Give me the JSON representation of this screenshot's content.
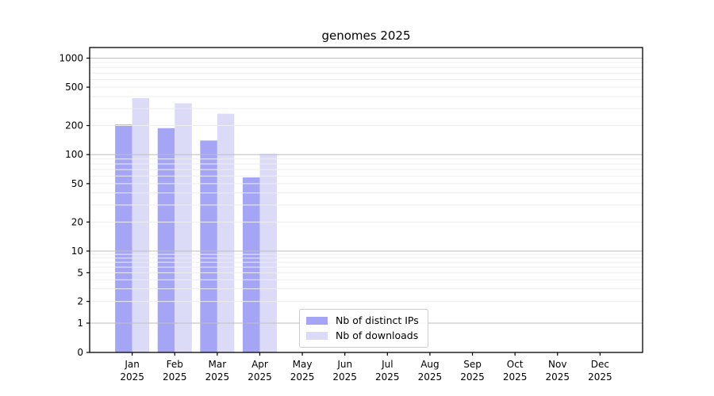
{
  "window": {
    "title": "genomes 2025"
  },
  "chart_data": {
    "type": "bar",
    "title": "genomes 2025",
    "scale": "symlog",
    "grid": "both",
    "legend_position": "lower-center",
    "categories": [
      "Jan",
      "Feb",
      "Mar",
      "Apr",
      "May",
      "Jun",
      "Jul",
      "Aug",
      "Sep",
      "Oct",
      "Nov",
      "Dec"
    ],
    "category_year": "2025",
    "series": [
      {
        "name": "Nb of distinct IPs",
        "color": "#a5a5f6",
        "values": [
          205,
          188,
          140,
          58,
          0,
          0,
          0,
          0,
          0,
          0,
          0,
          0
        ]
      },
      {
        "name": "Nb of downloads",
        "color": "#dbdbf8",
        "values": [
          385,
          340,
          265,
          102,
          0,
          0,
          0,
          0,
          0,
          0,
          0,
          0
        ]
      }
    ],
    "yticks": [
      0,
      1,
      2,
      5,
      10,
      20,
      50,
      100,
      200,
      500,
      1000
    ],
    "ylim": [
      0,
      1300
    ],
    "xlabel": "",
    "ylabel": "",
    "colors": {
      "grid_minor": "#ededed",
      "grid_major": "#bdbdbd",
      "axis": "#000000",
      "text": "#000000",
      "background": "#ffffff"
    }
  }
}
